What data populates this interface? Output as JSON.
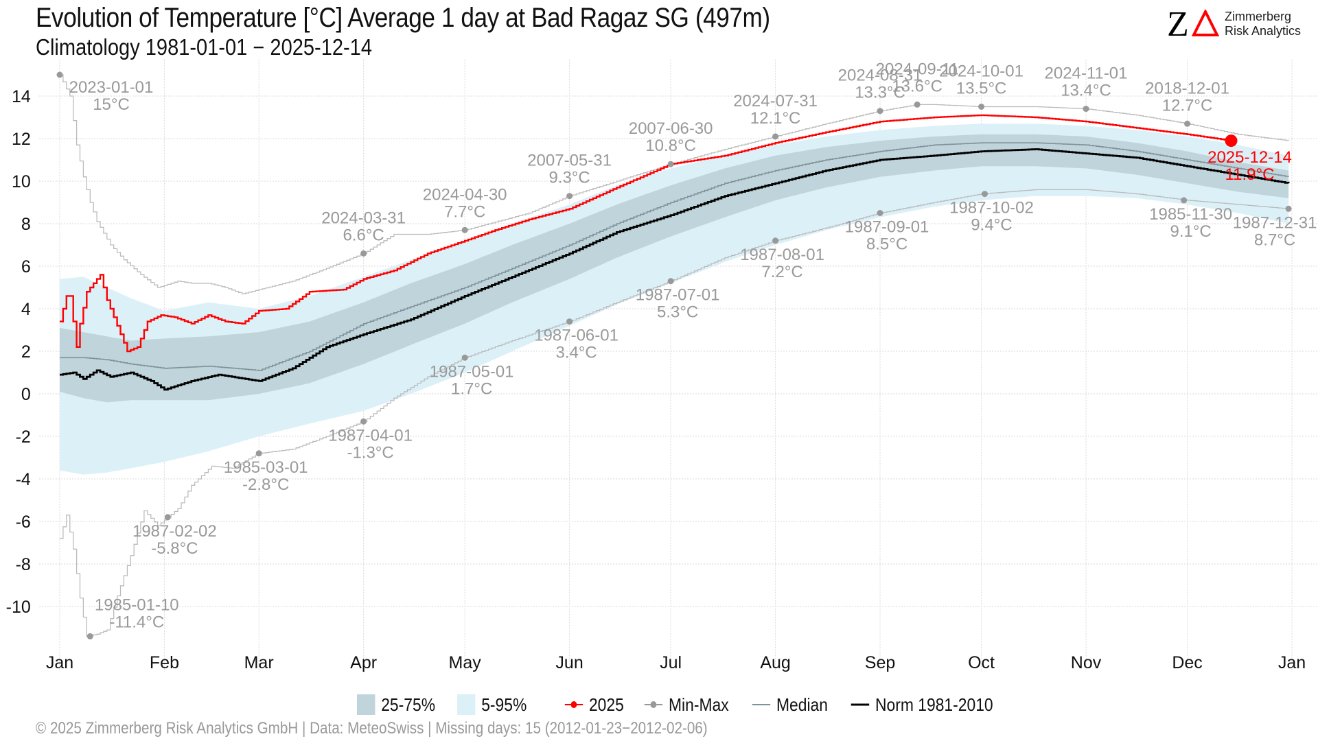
{
  "header": {
    "title": "Evolution of Temperature [°C] Average 1 day at Bad Ragaz  SG (497m)",
    "subtitle": "Climatology 1981-01-01 − 2025-12-14"
  },
  "logo": {
    "mark_letter": "Z",
    "line1": "Zimmerberg",
    "line2": "Risk Analytics"
  },
  "legend": {
    "items": [
      {
        "label": "25-75%",
        "kind": "band",
        "color": "#c0d4db"
      },
      {
        "label": "5-95%",
        "kind": "band",
        "color": "#dcf0f8"
      },
      {
        "label": "2025",
        "kind": "point-line",
        "color": "#ff0000"
      },
      {
        "label": "Min-Max",
        "kind": "point-line",
        "color": "#999999"
      },
      {
        "label": "Median",
        "kind": "line",
        "color": "#7f9199"
      },
      {
        "label": "Norm 1981-2010",
        "kind": "line",
        "color": "#000000"
      }
    ]
  },
  "footer": {
    "text": "©  2025 Zimmerberg Risk Analytics GmbH | Data: MeteoSwiss | Missing days: 15 (2012-01-23−2012-02-06)"
  },
  "colors": {
    "current": "#ff0000",
    "minmax": "#bbbbbb",
    "minmax_label": "#999999",
    "median": "#7f9199",
    "norm": "#000000",
    "band_25_75": "#c0d4db",
    "band_5_95": "#dcf0f8",
    "grid": "#d9d9d9"
  },
  "chart_data": {
    "type": "line",
    "title": "Evolution of Temperature [°C] Average 1 day at Bad Ragaz  SG (497m)",
    "subtitle": "Climatology 1981-01-01 − 2025-12-14",
    "xlabel": "",
    "ylabel": "",
    "x_unit": "day of year",
    "xlim": [
      1,
      366
    ],
    "ylim": [
      -11.8,
      15.4
    ],
    "grid": true,
    "legend_position": "bottom",
    "x_ticks": [
      {
        "label": "Jan",
        "day": 1
      },
      {
        "label": "Feb",
        "day": 32
      },
      {
        "label": "Mar",
        "day": 60
      },
      {
        "label": "Apr",
        "day": 91
      },
      {
        "label": "May",
        "day": 121
      },
      {
        "label": "Jun",
        "day": 152
      },
      {
        "label": "Jul",
        "day": 182
      },
      {
        "label": "Aug",
        "day": 213
      },
      {
        "label": "Sep",
        "day": 244
      },
      {
        "label": "Oct",
        "day": 274
      },
      {
        "label": "Nov",
        "day": 305
      },
      {
        "label": "Dec",
        "day": 335
      },
      {
        "label": "Jan",
        "day": 366
      }
    ],
    "y_ticks": [
      -10,
      -8,
      -6,
      -4,
      -2,
      0,
      2,
      4,
      6,
      8,
      10,
      12,
      14
    ],
    "series": [
      {
        "name": "5-95%",
        "kind": "band",
        "x": [
          1,
          8,
          15,
          22,
          32,
          45,
          60,
          75,
          91,
          105,
          121,
          135,
          152,
          166,
          182,
          198,
          213,
          228,
          244,
          260,
          274,
          290,
          305,
          320,
          335,
          350,
          365
        ],
        "lower": [
          -3.6,
          -3.8,
          -3.7,
          -3.5,
          -3.2,
          -2.7,
          -2.0,
          -1.4,
          -0.8,
          0.0,
          1.0,
          2.0,
          3.2,
          4.2,
          5.2,
          6.2,
          7.0,
          7.7,
          8.3,
          8.8,
          9.1,
          9.3,
          9.3,
          9.2,
          8.9,
          8.5,
          8.0
        ],
        "upper": [
          5.4,
          5.5,
          5.0,
          4.5,
          3.9,
          4.3,
          4.0,
          4.6,
          5.5,
          6.3,
          7.2,
          8.0,
          8.9,
          9.8,
          10.6,
          11.2,
          11.7,
          12.1,
          12.4,
          12.6,
          12.7,
          12.7,
          12.6,
          12.4,
          12.1,
          11.7,
          11.2
        ]
      },
      {
        "name": "25-75%",
        "kind": "band",
        "x": [
          1,
          8,
          15,
          22,
          32,
          45,
          60,
          75,
          91,
          105,
          121,
          135,
          152,
          166,
          182,
          198,
          213,
          228,
          244,
          260,
          274,
          290,
          305,
          320,
          335,
          350,
          365
        ],
        "lower": [
          0.1,
          -0.2,
          -0.4,
          -0.3,
          -0.3,
          -0.3,
          0.0,
          0.5,
          1.4,
          2.3,
          3.3,
          4.3,
          5.4,
          6.4,
          7.4,
          8.3,
          9.1,
          9.7,
          10.2,
          10.5,
          10.7,
          10.7,
          10.6,
          10.3,
          9.9,
          9.5,
          9.2
        ],
        "upper": [
          3.1,
          2.9,
          2.7,
          2.5,
          2.6,
          2.7,
          2.9,
          3.4,
          4.3,
          5.2,
          6.1,
          7.0,
          8.0,
          8.9,
          9.8,
          10.6,
          11.2,
          11.6,
          11.9,
          12.1,
          12.2,
          12.2,
          12.1,
          11.8,
          11.4,
          10.9,
          10.5
        ]
      },
      {
        "name": "Median",
        "kind": "line",
        "x": [
          1,
          8,
          15,
          22,
          32,
          45,
          60,
          75,
          91,
          105,
          121,
          135,
          152,
          166,
          182,
          198,
          213,
          228,
          244,
          260,
          274,
          290,
          305,
          320,
          335,
          350,
          365
        ],
        "values": [
          1.7,
          1.7,
          1.6,
          1.4,
          1.2,
          1.3,
          1.1,
          2.0,
          3.3,
          4.1,
          5.0,
          5.9,
          7.0,
          8.0,
          9.0,
          9.9,
          10.5,
          11.0,
          11.4,
          11.7,
          11.8,
          11.8,
          11.7,
          11.4,
          11.0,
          10.6,
          10.2
        ]
      },
      {
        "name": "Norm 1981-2010",
        "kind": "line",
        "x": [
          1,
          5,
          8,
          12,
          16,
          22,
          28,
          32,
          40,
          48,
          56,
          60,
          70,
          80,
          91,
          105,
          121,
          135,
          152,
          166,
          182,
          198,
          213,
          228,
          244,
          260,
          274,
          290,
          305,
          320,
          335,
          350,
          365
        ],
        "values": [
          0.9,
          1.0,
          0.7,
          1.1,
          0.8,
          1.0,
          0.6,
          0.2,
          0.6,
          0.9,
          0.7,
          0.6,
          1.2,
          2.2,
          2.8,
          3.5,
          4.6,
          5.5,
          6.6,
          7.6,
          8.4,
          9.3,
          9.9,
          10.5,
          11.0,
          11.2,
          11.4,
          11.5,
          11.3,
          11.1,
          10.7,
          10.3,
          9.9
        ]
      },
      {
        "name": "2025",
        "kind": "line",
        "x": [
          1,
          3,
          4,
          6,
          7,
          9,
          11,
          13,
          15,
          18,
          21,
          24,
          27,
          31,
          35,
          40,
          45,
          50,
          55,
          60,
          68,
          75,
          85,
          91,
          100,
          110,
          121,
          130,
          140,
          152,
          166,
          182,
          198,
          213,
          228,
          244,
          260,
          274,
          290,
          305,
          320,
          335,
          348
        ],
        "values": [
          3.4,
          4.6,
          4.6,
          2.2,
          3.3,
          4.8,
          5.2,
          5.6,
          4.4,
          3.2,
          2.0,
          2.2,
          3.4,
          3.7,
          3.6,
          3.3,
          3.7,
          3.4,
          3.3,
          3.9,
          4.0,
          4.8,
          4.9,
          5.4,
          5.8,
          6.6,
          7.2,
          7.7,
          8.2,
          8.7,
          9.7,
          10.8,
          11.2,
          11.8,
          12.3,
          12.8,
          13.0,
          13.1,
          13.0,
          12.8,
          12.5,
          12.2,
          11.9
        ]
      },
      {
        "name": "Max",
        "kind": "line",
        "x": [
          1,
          4,
          6,
          8,
          10,
          12,
          16,
          20,
          25,
          30,
          36,
          40,
          45,
          50,
          55,
          60,
          70,
          80,
          91,
          100,
          110,
          121,
          140,
          152,
          166,
          182,
          198,
          213,
          228,
          244,
          255,
          260,
          274,
          290,
          305,
          320,
          335,
          350,
          365
        ],
        "values": [
          15.0,
          14.0,
          11.7,
          10.2,
          9.0,
          8.1,
          7.0,
          6.3,
          5.6,
          5.0,
          5.3,
          5.2,
          5.2,
          5.0,
          4.7,
          4.9,
          5.3,
          5.9,
          6.6,
          7.5,
          7.5,
          7.7,
          8.5,
          9.3,
          10.0,
          10.8,
          11.5,
          12.1,
          12.7,
          13.3,
          13.6,
          13.6,
          13.5,
          13.5,
          13.4,
          13.1,
          12.7,
          12.2,
          11.9
        ]
      },
      {
        "name": "Min",
        "kind": "line",
        "x": [
          1,
          3,
          5,
          7,
          9,
          12,
          15,
          18,
          22,
          26,
          30,
          33,
          36,
          40,
          46,
          52,
          60,
          70,
          80,
          91,
          100,
          110,
          121,
          135,
          152,
          166,
          182,
          198,
          213,
          228,
          244,
          260,
          274,
          290,
          305,
          320,
          335,
          350,
          365
        ],
        "values": [
          -6.8,
          -5.7,
          -7.3,
          -9.6,
          -11.4,
          -11.3,
          -11.1,
          -9.5,
          -7.6,
          -5.5,
          -6.2,
          -5.8,
          -5.4,
          -4.3,
          -3.4,
          -3.5,
          -2.8,
          -2.6,
          -2.0,
          -1.3,
          -0.2,
          0.8,
          1.7,
          2.5,
          3.4,
          4.3,
          5.3,
          6.4,
          7.2,
          7.8,
          8.5,
          9.0,
          9.4,
          9.6,
          9.6,
          9.4,
          9.1,
          8.9,
          8.7
        ]
      }
    ],
    "current_point": {
      "date": "2025-12-14",
      "day": 348,
      "value": 11.9,
      "label_date": "2025-12-14",
      "label_value": "11.9°C"
    },
    "annotations": [
      {
        "type": "max",
        "date": "2023-01-01",
        "day": 1,
        "value": 15.0,
        "label_value": "15°C"
      },
      {
        "type": "max",
        "date": "2024-03-31",
        "day": 91,
        "value": 6.6,
        "label_value": "6.6°C"
      },
      {
        "type": "max",
        "date": "2024-04-30",
        "day": 121,
        "value": 7.7,
        "label_value": "7.7°C"
      },
      {
        "type": "max",
        "date": "2007-05-31",
        "day": 152,
        "value": 9.3,
        "label_value": "9.3°C"
      },
      {
        "type": "max",
        "date": "2007-06-30",
        "day": 182,
        "value": 10.8,
        "label_value": "10.8°C"
      },
      {
        "type": "max",
        "date": "2024-07-31",
        "day": 213,
        "value": 12.1,
        "label_value": "12.1°C"
      },
      {
        "type": "max",
        "date": "2024-08-31",
        "day": 244,
        "value": 13.3,
        "label_value": "13.3°C"
      },
      {
        "type": "max",
        "date": "2024-09-11",
        "day": 255,
        "value": 13.6,
        "label_value": "13.6°C"
      },
      {
        "type": "max",
        "date": "2024-10-01",
        "day": 274,
        "value": 13.5,
        "label_value": "13.5°C"
      },
      {
        "type": "max",
        "date": "2024-11-01",
        "day": 305,
        "value": 13.4,
        "label_value": "13.4°C"
      },
      {
        "type": "max",
        "date": "2018-12-01",
        "day": 335,
        "value": 12.7,
        "label_value": "12.7°C"
      },
      {
        "type": "min",
        "date": "1985-01-10",
        "day": 10,
        "value": -11.4,
        "label_value": "-11.4°C"
      },
      {
        "type": "min",
        "date": "1987-02-02",
        "day": 33,
        "value": -5.8,
        "label_value": "-5.8°C"
      },
      {
        "type": "min",
        "date": "1985-03-01",
        "day": 60,
        "value": -2.8,
        "label_value": "-2.8°C"
      },
      {
        "type": "min",
        "date": "1987-04-01",
        "day": 91,
        "value": -1.3,
        "label_value": "-1.3°C"
      },
      {
        "type": "min",
        "date": "1987-05-01",
        "day": 121,
        "value": 1.7,
        "label_value": "1.7°C"
      },
      {
        "type": "min",
        "date": "1987-06-01",
        "day": 152,
        "value": 3.4,
        "label_value": "3.4°C"
      },
      {
        "type": "min",
        "date": "1987-07-01",
        "day": 182,
        "value": 5.3,
        "label_value": "5.3°C"
      },
      {
        "type": "min",
        "date": "1987-08-01",
        "day": 213,
        "value": 7.2,
        "label_value": "7.2°C"
      },
      {
        "type": "min",
        "date": "1987-09-01",
        "day": 244,
        "value": 8.5,
        "label_value": "8.5°C"
      },
      {
        "type": "min",
        "date": "1987-10-02",
        "day": 275,
        "value": 9.4,
        "label_value": "9.4°C"
      },
      {
        "type": "min",
        "date": "1985-11-30",
        "day": 334,
        "value": 9.1,
        "label_value": "9.1°C"
      },
      {
        "type": "min",
        "date": "1987-12-31",
        "day": 365,
        "value": 8.7,
        "label_value": "8.7°C"
      }
    ]
  }
}
